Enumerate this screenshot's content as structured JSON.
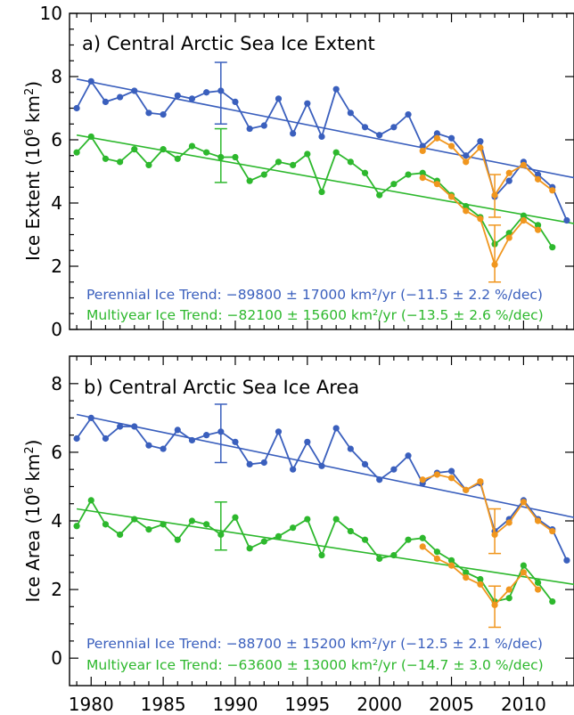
{
  "chart_data": [
    {
      "type": "line",
      "title": "a) Central Arctic Sea Ice Extent",
      "ylabel_main": "Ice Extent (10",
      "ylabel_sup": "6",
      "ylabel_end": " km",
      "ylabel_sup2": "2",
      "ylabel_close": ")",
      "xlim": [
        1978.5,
        2013.5
      ],
      "ylim": [
        0,
        10
      ],
      "yticks": [
        "0",
        "2",
        "4",
        "6",
        "8",
        "10"
      ],
      "colors": {
        "perennial": "#3a5fbd",
        "multiyear": "#2db82d",
        "alt": "#f0961e"
      },
      "series": [
        {
          "key": "perennial",
          "x": [
            1979,
            1980,
            1981,
            1982,
            1983,
            1984,
            1985,
            1986,
            1987,
            1988,
            1989,
            1990,
            1991,
            1992,
            1993,
            1994,
            1995,
            1996,
            1997,
            1998,
            1999,
            2000,
            2001,
            2002,
            2003,
            2004,
            2005,
            2006,
            2007,
            2008,
            2009,
            2010,
            2011,
            2012,
            2013
          ],
          "values": [
            7.0,
            7.85,
            7.2,
            7.35,
            7.55,
            6.85,
            6.8,
            7.4,
            7.3,
            7.5,
            7.55,
            7.2,
            6.35,
            6.45,
            7.3,
            6.2,
            7.15,
            6.1,
            7.6,
            6.85,
            6.4,
            6.15,
            6.4,
            6.8,
            5.8,
            6.2,
            6.05,
            5.5,
            5.95,
            4.2,
            4.7,
            5.3,
            4.9,
            4.5,
            3.45
          ]
        },
        {
          "key": "multiyear",
          "x": [
            1979,
            1980,
            1981,
            1982,
            1983,
            1984,
            1985,
            1986,
            1987,
            1988,
            1989,
            1990,
            1991,
            1992,
            1993,
            1994,
            1995,
            1996,
            1997,
            1998,
            1999,
            2000,
            2001,
            2002,
            2003,
            2004,
            2005,
            2006,
            2007,
            2008,
            2009,
            2010,
            2011,
            2012
          ],
          "values": [
            5.6,
            6.1,
            5.4,
            5.3,
            5.7,
            5.2,
            5.7,
            5.4,
            5.8,
            5.6,
            5.45,
            5.45,
            4.7,
            4.9,
            5.3,
            5.2,
            5.55,
            4.35,
            5.6,
            5.3,
            4.95,
            4.25,
            4.6,
            4.9,
            4.95,
            4.7,
            4.25,
            3.9,
            3.55,
            2.7,
            3.05,
            3.6,
            3.3,
            2.6
          ]
        },
        {
          "key": "alt_perennial",
          "x": [
            2003,
            2004,
            2005,
            2006,
            2007,
            2008,
            2009,
            2010,
            2011,
            2012
          ],
          "values": [
            5.65,
            6.05,
            5.8,
            5.3,
            5.75,
            4.25,
            4.95,
            5.2,
            4.75,
            4.4
          ]
        },
        {
          "key": "alt_multiyear",
          "x": [
            2003,
            2004,
            2005,
            2006,
            2007,
            2008,
            2009,
            2010,
            2011
          ],
          "values": [
            4.8,
            4.6,
            4.2,
            3.75,
            3.5,
            2.05,
            2.9,
            3.45,
            3.15
          ]
        }
      ],
      "trend_lines": [
        {
          "key": "perennial",
          "x": [
            1979,
            2013.5
          ],
          "values": [
            7.92,
            4.8
          ]
        },
        {
          "key": "multiyear",
          "x": [
            1979,
            2013.5
          ],
          "values": [
            6.15,
            3.35
          ]
        }
      ],
      "error_bars": [
        {
          "key": "perennial",
          "x": 1989,
          "low": 6.5,
          "high": 8.45
        },
        {
          "key": "multiyear",
          "x": 1989,
          "low": 4.65,
          "high": 6.35
        },
        {
          "key": "alt",
          "x": 2008,
          "low": 3.55,
          "high": 4.9
        },
        {
          "key": "alt",
          "x": 2008,
          "low": 1.5,
          "high": 3.3
        }
      ],
      "annotations": [
        {
          "key": "perennial",
          "text": "Perennial Ice Trend: −89800 ± 17000 km²/yr (−11.5 ± 2.2 %/dec)"
        },
        {
          "key": "multiyear",
          "text": "Multiyear Ice Trend: −82100 ± 15600 km²/yr (−13.5 ± 2.6 %/dec)"
        }
      ]
    },
    {
      "type": "line",
      "title": "b) Central Arctic Sea Ice Area",
      "ylabel_main": "Ice Area (10",
      "ylabel_sup": "6",
      "ylabel_end": " km",
      "ylabel_sup2": "2",
      "ylabel_close": ")",
      "xlim": [
        1978.5,
        2013.5
      ],
      "ylim": [
        -0.8,
        8.8
      ],
      "yticks": [
        "0",
        "2",
        "4",
        "6",
        "8"
      ],
      "xticks": [
        "1980",
        "1985",
        "1990",
        "1995",
        "2000",
        "2005",
        "2010"
      ],
      "series": [
        {
          "key": "perennial",
          "x": [
            1979,
            1980,
            1981,
            1982,
            1983,
            1984,
            1985,
            1986,
            1987,
            1988,
            1989,
            1990,
            1991,
            1992,
            1993,
            1994,
            1995,
            1996,
            1997,
            1998,
            1999,
            2000,
            2001,
            2002,
            2003,
            2004,
            2005,
            2006,
            2007,
            2008,
            2009,
            2010,
            2011,
            2012,
            2013
          ],
          "values": [
            6.4,
            7.0,
            6.4,
            6.75,
            6.75,
            6.2,
            6.1,
            6.65,
            6.35,
            6.5,
            6.6,
            6.3,
            5.65,
            5.7,
            6.6,
            5.5,
            6.3,
            5.6,
            6.7,
            6.1,
            5.65,
            5.2,
            5.5,
            5.9,
            5.1,
            5.4,
            5.45,
            4.9,
            5.1,
            3.7,
            4.05,
            4.6,
            4.05,
            3.75,
            2.85
          ]
        },
        {
          "key": "multiyear",
          "x": [
            1979,
            1980,
            1981,
            1982,
            1983,
            1984,
            1985,
            1986,
            1987,
            1988,
            1989,
            1990,
            1991,
            1992,
            1993,
            1994,
            1995,
            1996,
            1997,
            1998,
            1999,
            2000,
            2001,
            2002,
            2003,
            2004,
            2005,
            2006,
            2007,
            2008,
            2009,
            2010,
            2011,
            2012
          ],
          "values": [
            3.85,
            4.6,
            3.9,
            3.6,
            4.05,
            3.75,
            3.9,
            3.45,
            4.0,
            3.9,
            3.6,
            4.1,
            3.2,
            3.4,
            3.55,
            3.8,
            4.05,
            3.0,
            4.05,
            3.7,
            3.45,
            2.9,
            3.0,
            3.45,
            3.5,
            3.1,
            2.85,
            2.5,
            2.3,
            1.65,
            1.75,
            2.7,
            2.2,
            1.65
          ]
        },
        {
          "key": "alt_perennial",
          "x": [
            2003,
            2004,
            2005,
            2006,
            2007,
            2008,
            2009,
            2010,
            2011,
            2012
          ],
          "values": [
            5.2,
            5.35,
            5.25,
            4.9,
            5.15,
            3.6,
            3.95,
            4.55,
            4.0,
            3.7
          ]
        },
        {
          "key": "alt_multiyear",
          "x": [
            2003,
            2004,
            2005,
            2006,
            2007,
            2008,
            2009,
            2010,
            2011
          ],
          "values": [
            3.25,
            2.9,
            2.7,
            2.35,
            2.15,
            1.55,
            2.0,
            2.5,
            2.0
          ]
        }
      ],
      "trend_lines": [
        {
          "key": "perennial",
          "x": [
            1979,
            2013.5
          ],
          "values": [
            7.1,
            4.1
          ]
        },
        {
          "key": "multiyear",
          "x": [
            1979,
            2013.5
          ],
          "values": [
            4.35,
            2.15
          ]
        }
      ],
      "error_bars": [
        {
          "key": "perennial",
          "x": 1989,
          "low": 5.7,
          "high": 7.4
        },
        {
          "key": "multiyear",
          "x": 1989,
          "low": 3.15,
          "high": 4.55
        },
        {
          "key": "alt",
          "x": 2008,
          "low": 3.05,
          "high": 4.35
        },
        {
          "key": "alt",
          "x": 2008,
          "low": 0.9,
          "high": 2.1
        }
      ],
      "annotations": [
        {
          "key": "perennial",
          "text": "Perennial Ice Trend: −88700 ± 15200 km²/yr (−12.5 ± 2.1 %/dec)"
        },
        {
          "key": "multiyear",
          "text": "Multiyear Ice Trend: −63600 ± 13000 km²/yr (−14.7 ± 3.0 %/dec)"
        }
      ]
    }
  ]
}
